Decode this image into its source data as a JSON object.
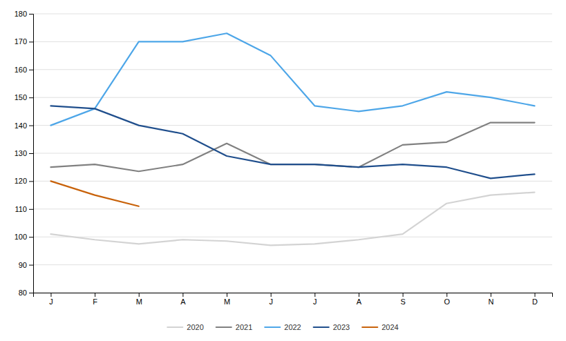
{
  "chart_data": {
    "type": "line",
    "categories": [
      "J",
      "F",
      "M",
      "A",
      "M",
      "J",
      "J",
      "A",
      "S",
      "O",
      "N",
      "D"
    ],
    "series": [
      {
        "name": "2020",
        "color": "#d3d3d3",
        "values": [
          101,
          99,
          97.5,
          99,
          98.5,
          97,
          97.5,
          99,
          101,
          112,
          115,
          116
        ]
      },
      {
        "name": "2021",
        "color": "#808080",
        "values": [
          125,
          126,
          123.5,
          126,
          133.5,
          126,
          126,
          125,
          133,
          134,
          141,
          141
        ]
      },
      {
        "name": "2022",
        "color": "#4da6e8",
        "values": [
          140,
          146,
          170,
          170,
          173,
          165,
          147,
          145,
          147,
          152,
          150,
          147
        ]
      },
      {
        "name": "2023",
        "color": "#1f4e8c",
        "values": [
          147,
          146,
          140,
          137,
          129,
          126,
          126,
          125,
          126,
          125,
          121,
          122.5
        ]
      },
      {
        "name": "2024",
        "color": "#c8620a",
        "values": [
          120,
          115,
          111,
          null,
          null,
          null,
          null,
          null,
          null,
          null,
          null,
          null
        ]
      }
    ],
    "ylim": [
      80,
      180
    ],
    "yticks": [
      80,
      90,
      100,
      110,
      120,
      130,
      140,
      150,
      160,
      170,
      180
    ],
    "grid": true,
    "legend": "bottom"
  }
}
